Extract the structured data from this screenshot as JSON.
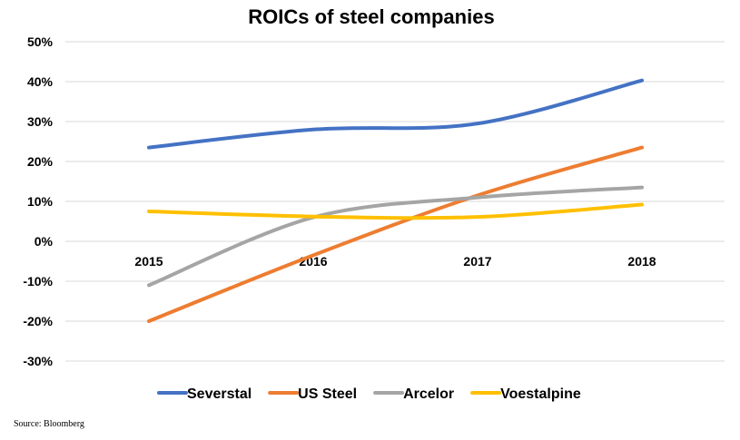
{
  "chart_data": {
    "type": "line",
    "title": "ROICs of steel companies",
    "categories": [
      "2015",
      "2016",
      "2017",
      "2018"
    ],
    "yticks": [
      "50%",
      "40%",
      "30%",
      "20%",
      "10%",
      "0%",
      "-10%",
      "-20%",
      "-30%"
    ],
    "ylim": [
      -30,
      50
    ],
    "ystep": 10,
    "grid": true,
    "legend_position": "bottom",
    "smooth": true,
    "series": [
      {
        "name": "Severstal",
        "color": "#4472C4",
        "values": [
          23.5,
          28,
          29.5,
          40.3
        ]
      },
      {
        "name": "US Steel",
        "color": "#ED7D31",
        "values": [
          -20,
          -3.5,
          11.5,
          23.5
        ]
      },
      {
        "name": "Arcelor",
        "color": "#A5A5A5",
        "values": [
          -11,
          6,
          11,
          13.5
        ]
      },
      {
        "name": "Voestalpine",
        "color": "#FFC000",
        "values": [
          7.5,
          6.2,
          6.1,
          9.2
        ]
      }
    ]
  },
  "source": "Source: Bloomberg"
}
